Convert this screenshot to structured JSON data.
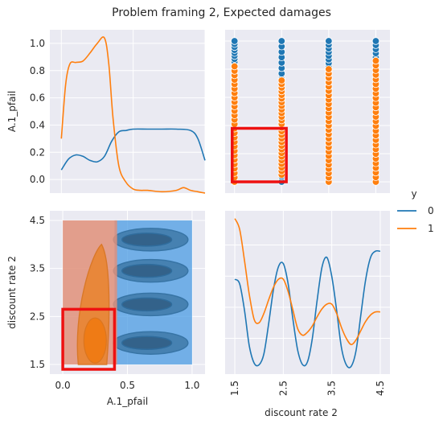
{
  "figure": {
    "title": "Problem framing 2, Expected damages"
  },
  "colors": {
    "panel_bg": "#eaeaf2",
    "grid": "#ffffff",
    "series_0": "#1f77b4",
    "series_1": "#ff7f0e",
    "highlight_box": "#ee1111",
    "kde_0_fill": "#4a9be3",
    "kde_1_fill": "#e0907a"
  },
  "legend": {
    "title": "y",
    "entries": [
      "0",
      "1"
    ],
    "placement": "right-center"
  },
  "chart_data": [
    {
      "panel": "top-left",
      "type": "line",
      "kind": "kde-diagonal",
      "xlabel": "",
      "ylabel": "A.1_pfail",
      "xlim": [
        -0.08,
        1.0
      ],
      "y_ticks": [
        "0.0",
        "0.2",
        "0.4",
        "0.6",
        "0.8",
        "1.0"
      ],
      "y_tick_values": [
        0.0,
        0.2,
        0.4,
        0.6,
        0.8,
        1.0
      ],
      "y_range": [
        -0.1,
        1.1
      ],
      "grid": true,
      "series": [
        {
          "name": "0",
          "x": [
            0.0,
            0.05,
            0.1,
            0.15,
            0.2,
            0.25,
            0.3,
            0.35,
            0.4,
            0.45,
            0.5,
            0.6,
            0.7,
            0.8,
            0.9,
            0.95,
            1.0
          ],
          "y": [
            0.07,
            0.15,
            0.18,
            0.17,
            0.14,
            0.13,
            0.17,
            0.28,
            0.35,
            0.36,
            0.37,
            0.37,
            0.37,
            0.37,
            0.36,
            0.3,
            0.14
          ]
        },
        {
          "name": "1",
          "x": [
            0.0,
            0.03,
            0.06,
            0.1,
            0.15,
            0.2,
            0.25,
            0.3,
            0.33,
            0.36,
            0.4,
            0.45,
            0.5,
            0.55,
            0.6,
            0.7,
            0.8,
            0.85,
            0.9,
            0.95,
            1.0
          ],
          "y": [
            0.3,
            0.7,
            0.85,
            0.86,
            0.87,
            0.93,
            1.0,
            1.04,
            0.85,
            0.45,
            0.1,
            -0.02,
            -0.07,
            -0.08,
            -0.08,
            -0.09,
            -0.08,
            -0.06,
            -0.08,
            -0.09,
            -0.1
          ]
        }
      ]
    },
    {
      "panel": "top-right",
      "type": "scatter",
      "xlabel": "",
      "ylabel": "",
      "x_categories": [
        1.5,
        2.5,
        3.5,
        4.5
      ],
      "xlim": [
        1.3,
        4.8
      ],
      "ylim": [
        -0.08,
        1.08
      ],
      "grid": true,
      "notes_highlight": {
        "x_range": [
          1.45,
          2.6
        ],
        "y_range": [
          0.0,
          0.38
        ]
      },
      "series": [
        {
          "name": "0",
          "x_values": [
            1.5,
            2.5,
            3.5,
            4.5
          ],
          "y_values_min": [
            0.45,
            0.0,
            0.32,
            0.25
          ],
          "y_values_max": [
            1.0,
            1.0,
            1.0,
            1.0
          ]
        },
        {
          "name": "1",
          "x_values": [
            1.5,
            2.5,
            3.5,
            4.5
          ],
          "y_values_min": [
            0.0,
            0.05,
            0.0,
            0.0
          ],
          "y_values_max": [
            0.82,
            0.72,
            0.8,
            0.86
          ]
        }
      ]
    },
    {
      "panel": "bottom-left",
      "type": "heatmap",
      "kind": "kde-contour",
      "xlabel": "A.1_pfail",
      "ylabel": "discount rate 2",
      "x_ticks": [
        "0.0",
        "0.5",
        "1.0"
      ],
      "x_tick_values": [
        0.0,
        0.5,
        1.0
      ],
      "y_ticks": [
        "1.5",
        "2.5",
        "3.5",
        "4.5"
      ],
      "y_tick_values": [
        1.5,
        2.5,
        3.5,
        4.5
      ],
      "xlim": [
        -0.1,
        1.1
      ],
      "ylim": [
        1.3,
        4.7
      ],
      "grid": true,
      "notes_highlight": {
        "x_range": [
          0.0,
          0.4
        ],
        "y_range": [
          1.4,
          2.65
        ]
      }
    },
    {
      "panel": "bottom-right",
      "type": "line",
      "kind": "kde-diagonal",
      "xlabel": "discount rate 2",
      "ylabel": "",
      "x_ticks": [
        "1.5",
        "2.5",
        "3.5",
        "4.5"
      ],
      "x_tick_values": [
        1.5,
        2.5,
        3.5,
        4.5
      ],
      "xlim": [
        1.3,
        4.7
      ],
      "grid": true,
      "series": [
        {
          "name": "0",
          "x": [
            1.5,
            1.6,
            1.7,
            1.8,
            1.9,
            2.0,
            2.1,
            2.2,
            2.3,
            2.4,
            2.5,
            2.6,
            2.7,
            2.8,
            2.9,
            3.0,
            3.1,
            3.2,
            3.3,
            3.4,
            3.5,
            3.6,
            3.7,
            3.8,
            3.9,
            4.0,
            4.1,
            4.2,
            4.3,
            4.4,
            4.5
          ],
          "y": [
            0.58,
            0.55,
            0.38,
            0.15,
            0.04,
            0.03,
            0.1,
            0.3,
            0.52,
            0.66,
            0.68,
            0.55,
            0.32,
            0.12,
            0.03,
            0.05,
            0.2,
            0.45,
            0.66,
            0.72,
            0.6,
            0.38,
            0.14,
            0.03,
            0.02,
            0.12,
            0.35,
            0.58,
            0.72,
            0.76,
            0.76
          ]
        },
        {
          "name": "1",
          "x": [
            1.5,
            1.6,
            1.7,
            1.8,
            1.9,
            2.0,
            2.1,
            2.2,
            2.3,
            2.4,
            2.5,
            2.6,
            2.7,
            2.8,
            2.9,
            3.0,
            3.1,
            3.2,
            3.3,
            3.4,
            3.5,
            3.6,
            3.7,
            3.8,
            3.9,
            4.0,
            4.1,
            4.2,
            4.3,
            4.4,
            4.5
          ],
          "y": [
            0.97,
            0.9,
            0.7,
            0.48,
            0.32,
            0.3,
            0.36,
            0.45,
            0.53,
            0.58,
            0.58,
            0.5,
            0.38,
            0.26,
            0.22,
            0.24,
            0.28,
            0.34,
            0.39,
            0.42,
            0.42,
            0.36,
            0.27,
            0.2,
            0.16,
            0.19,
            0.25,
            0.31,
            0.35,
            0.37,
            0.37
          ]
        }
      ]
    }
  ]
}
